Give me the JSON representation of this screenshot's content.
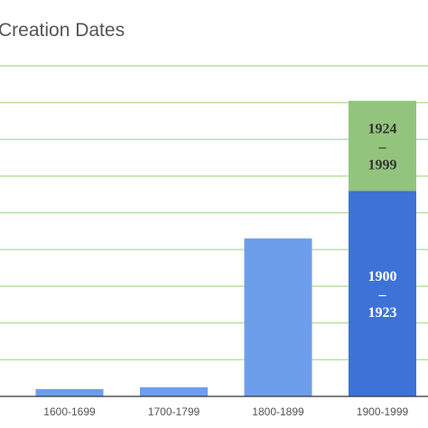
{
  "chart_data": {
    "type": "bar",
    "title": "Creation Dates",
    "categories": [
      "1600-1699",
      "1700-1799",
      "1800-1899",
      "1900-1999"
    ],
    "values": [
      2,
      2.5,
      43,
      80.5
    ],
    "stacked_split": {
      "category": "1900-1999",
      "segments": [
        {
          "label_lines": [
            "1900",
            "–",
            "1923"
          ],
          "value": 56,
          "color": "#3d72d6",
          "text_color": "#ffffff"
        },
        {
          "label_lines": [
            "1924",
            "–",
            "1999"
          ],
          "value": 24.5,
          "color": "#93c47d",
          "text_color": "#333333"
        }
      ]
    },
    "ylim": [
      0,
      90
    ],
    "grid": true,
    "colors": {
      "bar": "#6d9eeb",
      "grid": "#b7e1a1",
      "axis": "#333333"
    }
  }
}
